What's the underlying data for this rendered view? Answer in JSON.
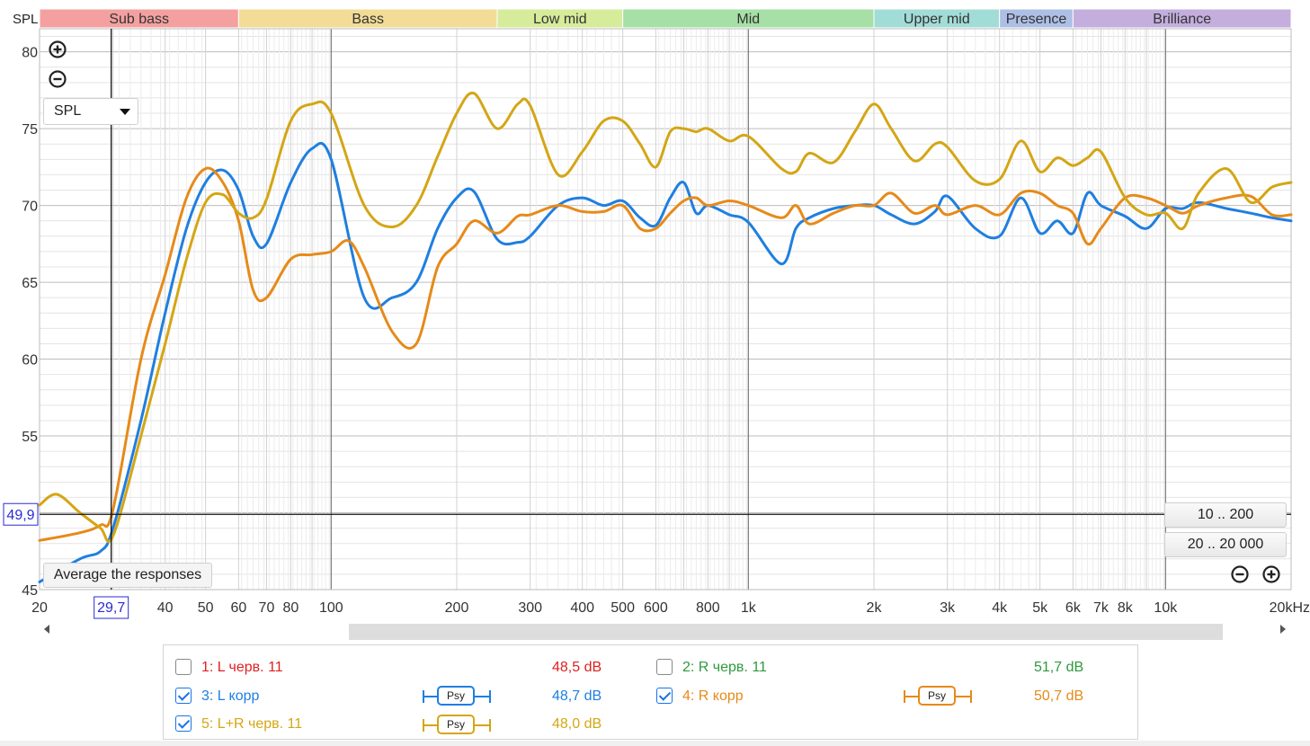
{
  "chart_data": {
    "type": "line",
    "y_axis_label": "SPL",
    "x_unit": "kHz",
    "x_scale": "log",
    "xlim": [
      20,
      20000
    ],
    "ylim": [
      45,
      81.5
    ],
    "x_ticks": [
      {
        "v": 20,
        "label": "20"
      },
      {
        "v": 29.7,
        "label": "29,7"
      },
      {
        "v": 40,
        "label": "40"
      },
      {
        "v": 50,
        "label": "50"
      },
      {
        "v": 60,
        "label": "60"
      },
      {
        "v": 70,
        "label": "70"
      },
      {
        "v": 80,
        "label": "80"
      },
      {
        "v": 100,
        "label": "100"
      },
      {
        "v": 200,
        "label": "200"
      },
      {
        "v": 300,
        "label": "300"
      },
      {
        "v": 400,
        "label": "400"
      },
      {
        "v": 500,
        "label": "500"
      },
      {
        "v": 600,
        "label": "600"
      },
      {
        "v": 800,
        "label": "800"
      },
      {
        "v": 1000,
        "label": "1k"
      },
      {
        "v": 2000,
        "label": "2k"
      },
      {
        "v": 3000,
        "label": "3k"
      },
      {
        "v": 4000,
        "label": "4k"
      },
      {
        "v": 5000,
        "label": "5k"
      },
      {
        "v": 6000,
        "label": "6k"
      },
      {
        "v": 7000,
        "label": "7k"
      },
      {
        "v": 8000,
        "label": "8k"
      },
      {
        "v": 10000,
        "label": "10k"
      },
      {
        "v": 20000,
        "label": "20kHz"
      }
    ],
    "y_ticks": [
      {
        "v": 45,
        "label": "45"
      },
      {
        "v": 55,
        "label": "55"
      },
      {
        "v": 60,
        "label": "60"
      },
      {
        "v": 65,
        "label": "65"
      },
      {
        "v": 70,
        "label": "70"
      },
      {
        "v": 75,
        "label": "75"
      },
      {
        "v": 80,
        "label": "80"
      }
    ],
    "y_minor_step": 1,
    "cursor": {
      "x": 29.7,
      "y": 49.9,
      "x_label": "29,7",
      "y_label": "49,9"
    },
    "bands": [
      {
        "name": "Sub bass",
        "from": 20,
        "to": 60,
        "color": "#f4a0a0"
      },
      {
        "name": "Bass",
        "from": 60,
        "to": 250,
        "color": "#f2dc96"
      },
      {
        "name": "Low mid",
        "from": 250,
        "to": 500,
        "color": "#d6ec9a"
      },
      {
        "name": "Mid",
        "from": 500,
        "to": 2000,
        "color": "#a6e0a6"
      },
      {
        "name": "Upper mid",
        "from": 2000,
        "to": 4000,
        "color": "#a2dcd6"
      },
      {
        "name": "Presence",
        "from": 4000,
        "to": 6000,
        "color": "#aebfe6"
      },
      {
        "name": "Brilliance",
        "from": 6000,
        "to": 20000,
        "color": "#c3aede"
      }
    ],
    "series": [
      {
        "name": "3: L корр",
        "color": "#1f7fe0",
        "x": [
          20,
          25,
          28,
          30,
          35,
          40,
          45,
          50,
          55,
          60,
          65,
          70,
          80,
          90,
          100,
          120,
          140,
          160,
          180,
          200,
          220,
          250,
          280,
          300,
          350,
          400,
          450,
          500,
          550,
          600,
          650,
          700,
          750,
          800,
          900,
          1000,
          1200,
          1300,
          1400,
          1600,
          1800,
          2000,
          2200,
          2500,
          2800,
          3000,
          3500,
          4000,
          4500,
          5000,
          5500,
          6000,
          6500,
          7000,
          8000,
          9000,
          10000,
          11000,
          12000,
          14000,
          16000,
          18000,
          20000
        ],
        "y": [
          45.5,
          47,
          47.5,
          49,
          56,
          63,
          68.5,
          71.5,
          72.3,
          71,
          68,
          67.5,
          71.5,
          73.7,
          73,
          64,
          64,
          65,
          68.5,
          70.5,
          70.9,
          67.8,
          67.6,
          68,
          70,
          70.5,
          70,
          70.3,
          69.2,
          68.7,
          70.5,
          71.5,
          69.5,
          70,
          69.4,
          68.9,
          66.2,
          68.5,
          69.2,
          69.8,
          70,
          70,
          69.4,
          68.8,
          69.6,
          70.6,
          68.5,
          68,
          70.5,
          68.2,
          69,
          68.2,
          70.8,
          70,
          69.3,
          68.5,
          69.8,
          69.8,
          70.2,
          69.8,
          69.5,
          69.2,
          69
        ],
        "tag": "Psy",
        "level": "48,7 dB"
      },
      {
        "name": "4: R корр",
        "color": "#e68a1a",
        "x": [
          20,
          25,
          28,
          30,
          35,
          40,
          45,
          50,
          55,
          60,
          65,
          70,
          80,
          90,
          100,
          110,
          120,
          140,
          160,
          180,
          200,
          220,
          250,
          280,
          300,
          350,
          400,
          450,
          500,
          550,
          600,
          650,
          700,
          750,
          800,
          900,
          1000,
          1200,
          1300,
          1400,
          1600,
          1800,
          2000,
          2200,
          2500,
          2800,
          3000,
          3500,
          4000,
          4500,
          5000,
          5500,
          6000,
          6500,
          7000,
          8000,
          9000,
          10000,
          11000,
          12000,
          14000,
          16000,
          18000,
          20000
        ],
        "y": [
          48.2,
          48.7,
          49.2,
          50.2,
          60,
          65.5,
          70.5,
          72.4,
          71.5,
          69,
          64.5,
          64,
          66.5,
          66.8,
          67,
          67.7,
          66,
          61.8,
          61,
          66,
          67.5,
          69,
          68.2,
          69.3,
          69.4,
          70,
          69.6,
          69.6,
          70,
          68.5,
          68.5,
          69.5,
          70.3,
          70.5,
          70,
          70.3,
          70,
          69.2,
          70,
          68.8,
          69.5,
          70,
          70,
          70.8,
          69.5,
          70,
          69.4,
          70,
          69.4,
          70.8,
          70.8,
          70,
          69.5,
          67.5,
          68.5,
          70.5,
          70.5,
          70,
          69.5,
          70,
          70.5,
          70.6,
          69.4,
          69.4
        ],
        "tag": "Psy",
        "level": "50,7 dB"
      },
      {
        "name": "5: L+R черв. 11",
        "color": "#d4a615",
        "x": [
          20,
          22,
          25,
          28,
          30,
          35,
          40,
          45,
          50,
          55,
          60,
          65,
          70,
          80,
          90,
          100,
          120,
          140,
          160,
          180,
          200,
          220,
          250,
          280,
          300,
          350,
          400,
          450,
          500,
          550,
          600,
          650,
          700,
          750,
          800,
          900,
          1000,
          1200,
          1300,
          1400,
          1600,
          1800,
          2000,
          2200,
          2500,
          2800,
          3000,
          3500,
          4000,
          4500,
          5000,
          5500,
          6000,
          6500,
          7000,
          8000,
          9000,
          10000,
          11000,
          12000,
          14000,
          16000,
          18000,
          20000
        ],
        "y": [
          50.5,
          51.2,
          50,
          49,
          48.5,
          55,
          61,
          66.5,
          70.2,
          70.7,
          69.5,
          69.2,
          70.4,
          75.5,
          76.6,
          76,
          70,
          68.6,
          70,
          73.2,
          76,
          77.3,
          75,
          76.6,
          76.5,
          72,
          73.5,
          75.5,
          75.5,
          74,
          72.5,
          74.8,
          75,
          74.8,
          75,
          74.2,
          74.5,
          72.4,
          72.2,
          73.4,
          72.8,
          74.8,
          76.6,
          75,
          72.9,
          74,
          73.8,
          71.6,
          71.7,
          74.2,
          72.2,
          73.1,
          72.6,
          73.1,
          73.5,
          70.5,
          69.4,
          69.5,
          68.5,
          70.8,
          72.4,
          70.2,
          71.2,
          71.5
        ],
        "tag": "Psy",
        "level": "48,0 dB"
      }
    ]
  },
  "controls": {
    "spl_select": "SPL",
    "average_button": "Average the responses",
    "range_btn_1": "10 .. 200",
    "range_btn_2": "20 .. 20 000"
  },
  "legend": {
    "items": [
      {
        "label": "1: L черв. 11",
        "level": "48,5 dB",
        "color": "#e02020",
        "checked": false
      },
      {
        "label": "2: R черв. 11",
        "level": "51,7 dB",
        "color": "#2e9a3c",
        "checked": false
      },
      {
        "label": "3: L корр",
        "level": "48,7 dB",
        "color": "#1f7fe0",
        "checked": true,
        "tag": "Psy"
      },
      {
        "label": "4: R корр",
        "level": "50,7 dB",
        "color": "#e68a1a",
        "checked": true,
        "tag": "Psy"
      },
      {
        "label": "5: L+R черв. 11",
        "level": "48,0 dB",
        "color": "#d4a615",
        "checked": true,
        "tag": "Psy"
      }
    ]
  }
}
